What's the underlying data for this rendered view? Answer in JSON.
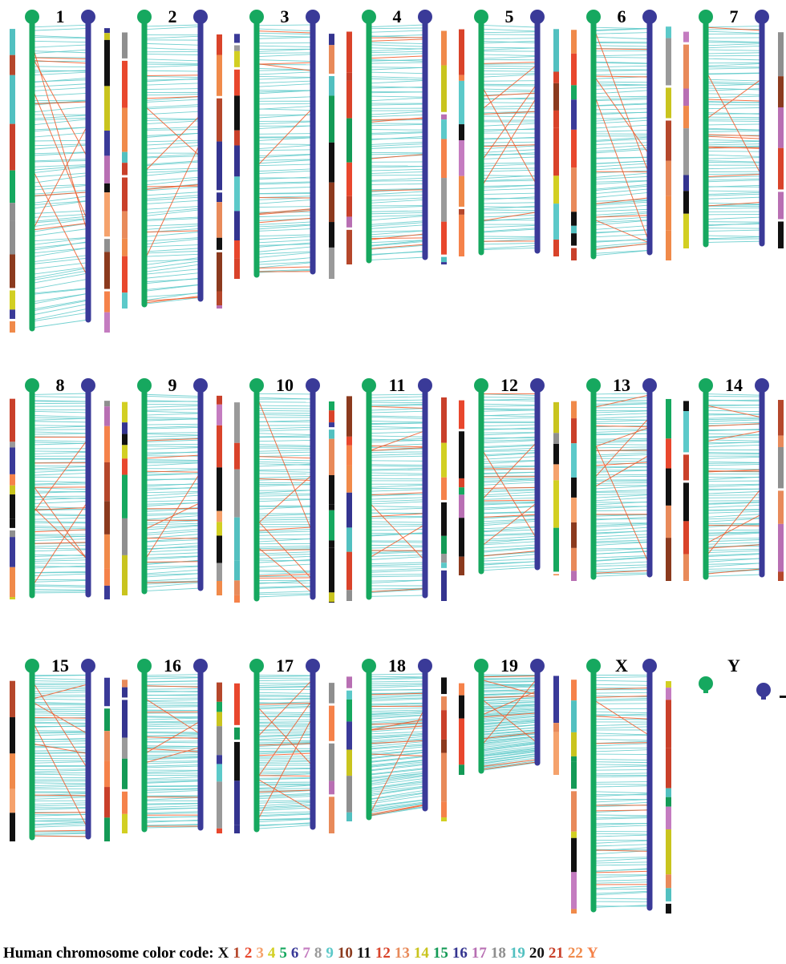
{
  "panels": [
    {
      "label": "1"
    },
    {
      "label": "2"
    },
    {
      "label": "3"
    },
    {
      "label": "4"
    },
    {
      "label": "5"
    },
    {
      "label": "6"
    },
    {
      "label": "7"
    },
    {
      "label": "8"
    },
    {
      "label": "9"
    },
    {
      "label": "10"
    },
    {
      "label": "11"
    },
    {
      "label": "12"
    },
    {
      "label": "13"
    },
    {
      "label": "14"
    },
    {
      "label": "15"
    },
    {
      "label": "16"
    },
    {
      "label": "17"
    },
    {
      "label": "18"
    },
    {
      "label": "19"
    },
    {
      "label": "X"
    },
    {
      "label": "Y"
    }
  ],
  "legend": {
    "title": "Human chromosome color code:",
    "items": [
      {
        "label": "X",
        "color": "#111111"
      },
      {
        "label": "1",
        "color": "#b5472b"
      },
      {
        "label": "2",
        "color": "#e8472d"
      },
      {
        "label": "3",
        "color": "#f5a26c"
      },
      {
        "label": "4",
        "color": "#d2cf22"
      },
      {
        "label": "5",
        "color": "#16a85f"
      },
      {
        "label": "6",
        "color": "#3a3a98"
      },
      {
        "label": "7",
        "color": "#c47cc0"
      },
      {
        "label": "8",
        "color": "#9a9a9a"
      },
      {
        "label": "9",
        "color": "#5cc9c9"
      },
      {
        "label": "10",
        "color": "#8b3a1e"
      },
      {
        "label": "11",
        "color": "#111111"
      },
      {
        "label": "12",
        "color": "#d9432a"
      },
      {
        "label": "13",
        "color": "#e88a5a"
      },
      {
        "label": "14",
        "color": "#c9c41e"
      },
      {
        "label": "15",
        "color": "#149a56"
      },
      {
        "label": "16",
        "color": "#34348f"
      },
      {
        "label": "17",
        "color": "#b86fb3"
      },
      {
        "label": "18",
        "color": "#8f8f8f"
      },
      {
        "label": "19",
        "color": "#52c0c0"
      },
      {
        "label": "20",
        "color": "#111111"
      },
      {
        "label": "21",
        "color": "#c9402a"
      },
      {
        "label": "22",
        "color": "#f08a4a"
      },
      {
        "label": "Y",
        "color": "#f5824a"
      }
    ]
  }
}
